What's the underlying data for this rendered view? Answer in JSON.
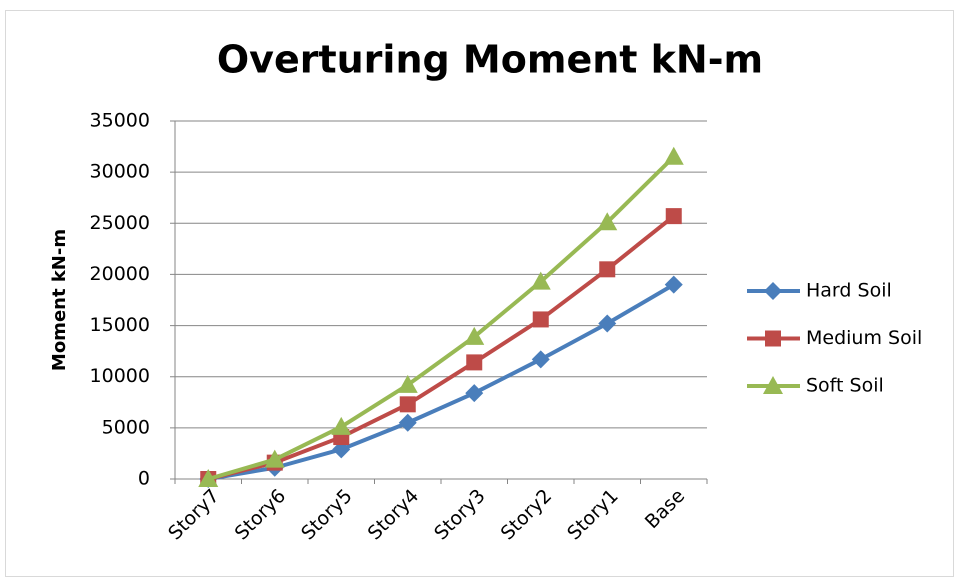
{
  "chart_data": {
    "type": "line",
    "title": "Overturing Moment kN-m",
    "ylabel": "Moment kN-m",
    "categories": [
      "Story7",
      "Story6",
      "Story5",
      "Story4",
      "Story3",
      "Story2",
      "Story1",
      "Base"
    ],
    "series": [
      {
        "name": "Hard Soil",
        "color": "#4a7ebb",
        "marker": "diamond",
        "values": [
          0,
          1100,
          2900,
          5500,
          8400,
          11700,
          15200,
          19000
        ]
      },
      {
        "name": "Medium Soil",
        "color": "#be4b48",
        "marker": "square",
        "values": [
          0,
          1600,
          4100,
          7300,
          11400,
          15600,
          20500,
          25700
        ]
      },
      {
        "name": "Soft Soil",
        "color": "#98b954",
        "marker": "triangle",
        "values": [
          0,
          1900,
          5100,
          9200,
          13900,
          19300,
          25100,
          31500
        ]
      }
    ],
    "ylim": [
      0,
      35000
    ],
    "yticks": [
      0,
      5000,
      10000,
      15000,
      20000,
      25000,
      30000,
      35000
    ],
    "grid": true,
    "legend": "right"
  }
}
